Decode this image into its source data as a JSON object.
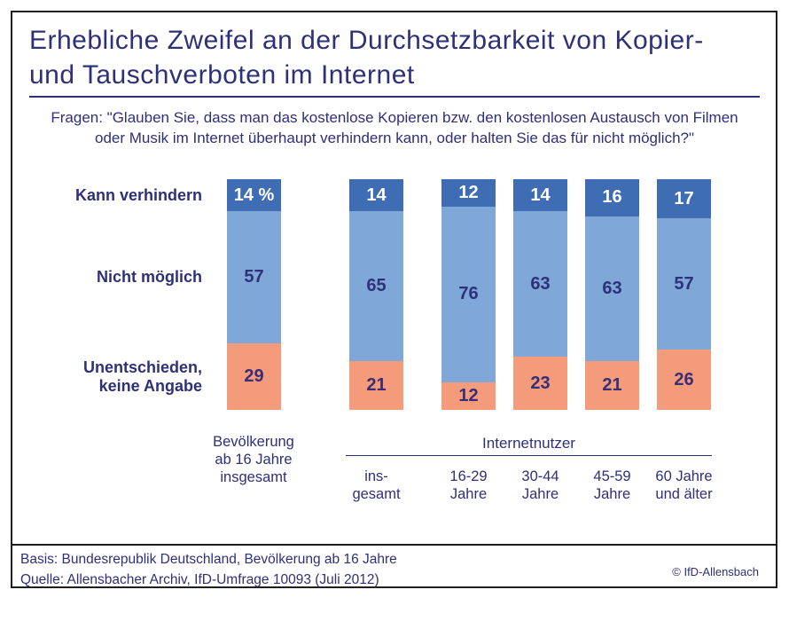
{
  "page": {
    "title": "Erhebliche Zweifel an der Durchsetzbarkeit von Kopier-\nund Tauschverboten im Internet",
    "question": "Fragen: \"Glauben Sie, dass man das kostenlose Kopieren bzw. den kostenlosen Austausch von Filmen\noder Musik im Internet überhaupt verhindern kann, oder halten Sie das für nicht möglich?\""
  },
  "legend": {
    "items": [
      {
        "label": "Kann verhindern"
      },
      {
        "label": "Nicht möglich"
      },
      {
        "label": "Unentschieden,\nkeine Angabe"
      }
    ]
  },
  "axis": {
    "single_label": "Bevölkerung\nab 16 Jahre\ninsgesamt",
    "group_header": "Internetnutzer",
    "group_labels": [
      "ins-\ngesamt",
      "16-29\nJahre",
      "30-44\nJahre",
      "45-59\nJahre",
      "60 Jahre\nund älter"
    ]
  },
  "footer": {
    "basis": "Basis: Bundesrepublik Deutschland, Bevölkerung ab 16 Jahre",
    "quelle": "Quelle: Allensbacher Archiv, IfD-Umfrage 10093 (Juli 2012)",
    "copyright": "© IfD-Allensbach"
  },
  "colors": {
    "navy_text": "#2e3078",
    "segment_dark_blue": "#3f6db4",
    "segment_light_blue": "#7fa7d8",
    "segment_orange": "#f49b7c",
    "frame": "#1f1f1f",
    "value_on_dark": "#ffffff"
  },
  "chart_data": {
    "type": "bar",
    "stacked": true,
    "unit": "percent",
    "ylim": [
      0,
      100
    ],
    "grid": false,
    "legend_position": "left",
    "categories": [
      "Bevölkerung ab 16 Jahre insgesamt",
      "Internetnutzer insgesamt",
      "Internetnutzer 16-29 Jahre",
      "Internetnutzer 30-44 Jahre",
      "Internetnutzer 45-59 Jahre",
      "Internetnutzer 60 Jahre und älter"
    ],
    "series": [
      {
        "name": "Kann verhindern",
        "color": "#3f6db4",
        "values": [
          14,
          14,
          12,
          14,
          16,
          17
        ]
      },
      {
        "name": "Nicht möglich",
        "color": "#7fa7d8",
        "values": [
          57,
          65,
          76,
          63,
          63,
          57
        ]
      },
      {
        "name": "Unentschieden, keine Angabe",
        "color": "#f49b7c",
        "values": [
          29,
          21,
          12,
          23,
          21,
          26
        ]
      }
    ],
    "value_display": [
      [
        "14 %",
        "57",
        "29"
      ],
      [
        "14",
        "65",
        "21"
      ],
      [
        "12",
        "76",
        "12"
      ],
      [
        "14",
        "63",
        "23"
      ],
      [
        "16",
        "63",
        "21"
      ],
      [
        "17",
        "57",
        "26"
      ]
    ]
  }
}
